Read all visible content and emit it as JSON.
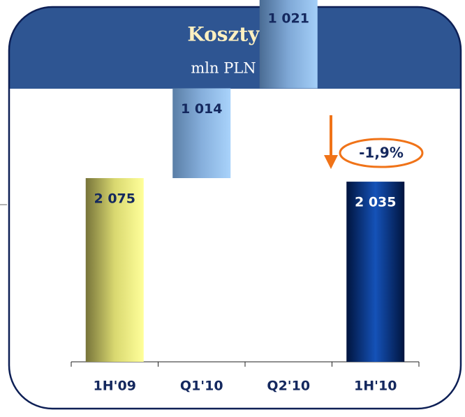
{
  "chart_data": {
    "type": "waterfall",
    "title": "Koszty",
    "subtitle": "mln PLN",
    "categories": [
      "1H'09",
      "Q1'10",
      "Q2'10",
      "1H'10"
    ],
    "values": [
      2075,
      1014,
      1021,
      2035
    ],
    "value_labels": [
      "2 075",
      "1 014",
      "1 021",
      "2 035"
    ],
    "bar_kinds": [
      "total",
      "step",
      "step",
      "total"
    ],
    "colors": [
      [
        "#77743a",
        "#d9d870",
        "#ffff9a"
      ],
      [
        "#5a7ea6",
        "#86afdc",
        "#a9d3fb"
      ],
      [
        "#4a6c94",
        "#7fa8d6",
        "#a4cff8"
      ],
      [
        "#00143e",
        "#1552b8",
        "#00143e"
      ]
    ],
    "label_colors": [
      "#14285e",
      "#14285e",
      "#14285e",
      "#ffffff"
    ],
    "annotation": "-1,9%",
    "annotation_color": "#f07318"
  }
}
